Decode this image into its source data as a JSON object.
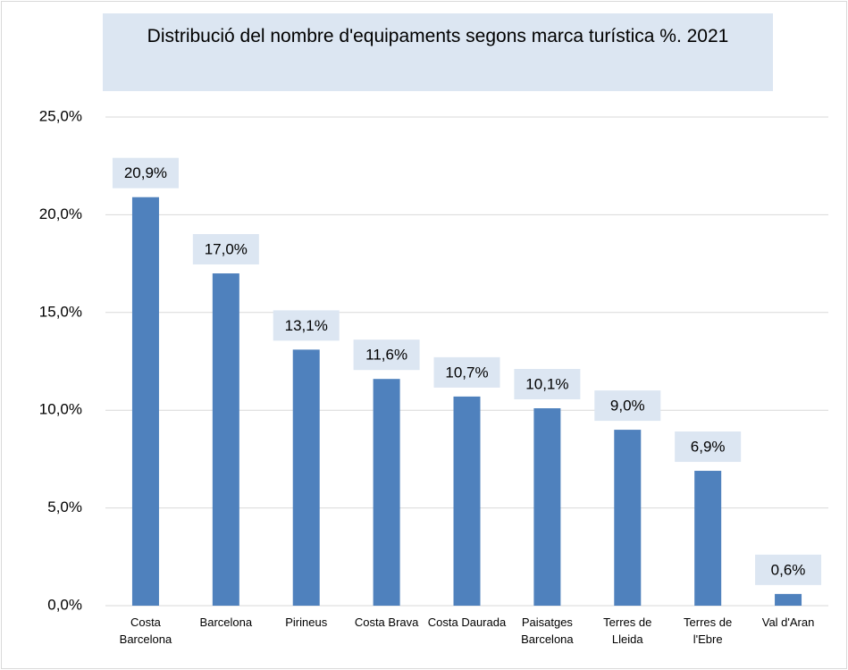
{
  "chart_data": {
    "type": "bar",
    "title": "Distribució del nombre d'equipaments segons marca turística %. 2021",
    "categories": [
      "Costa Barcelona",
      "Barcelona",
      "Pirineus",
      "Costa Brava",
      "Costa Daurada",
      "Paisatges Barcelona",
      "Terres de Lleida",
      "Terres de l'Ebre",
      "Val d'Aran"
    ],
    "values": [
      20.9,
      17.0,
      13.1,
      11.6,
      10.7,
      10.1,
      9.0,
      6.9,
      0.6
    ],
    "value_labels": [
      "20,9%",
      "17,0%",
      "13,1%",
      "11,6%",
      "10,7%",
      "10,1%",
      "9,0%",
      "6,9%",
      "0,6%"
    ],
    "color": "#4f81bd",
    "ylim": [
      0,
      25
    ],
    "yticks": [
      {
        "value": 0,
        "label": "0,0%"
      },
      {
        "value": 5,
        "label": "5,0%"
      },
      {
        "value": 10,
        "label": "10,0%"
      },
      {
        "value": 15,
        "label": "15,0%"
      },
      {
        "value": 20,
        "label": "20,0%"
      },
      {
        "value": 25,
        "label": "25,0%"
      }
    ],
    "grid": true
  }
}
